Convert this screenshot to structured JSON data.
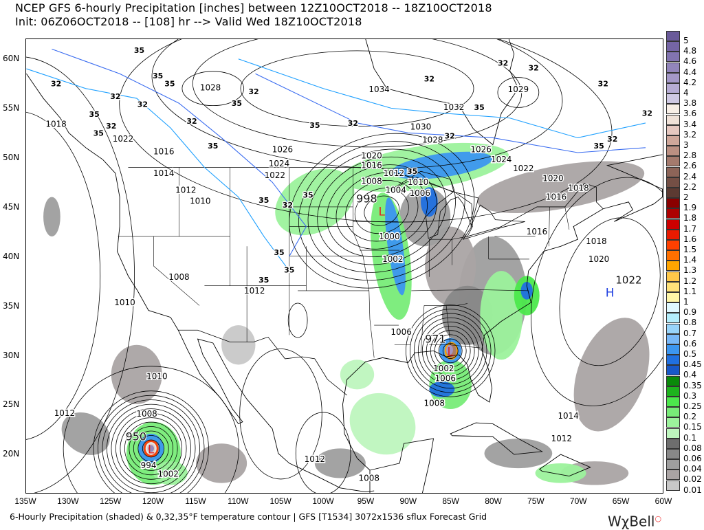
{
  "header": {
    "line1": "NCEP GFS 6-hourly Precipitation [inches] between 12Z10OCT2018 -- 18Z10OCT2018",
    "line2": "Init: 06Z06OCT2018 -- [108] hr --> Valid Wed 18Z10OCT2018"
  },
  "footer": {
    "caption": "6-Hourly Precipitation (shaded) & 0,32,35°F temperature contour | GFS [T1534] 3072x1536 sflux Forecast Grid",
    "logo": "WxBell"
  },
  "axes": {
    "lon_labels": [
      "135W",
      "130W",
      "125W",
      "120W",
      "115W",
      "110W",
      "105W",
      "100W",
      "95W",
      "90W",
      "85W",
      "80W",
      "75W",
      "70W",
      "65W",
      "60W"
    ],
    "lat_labels": [
      "60N",
      "55N",
      "50N",
      "45N",
      "40N",
      "35N",
      "30N",
      "25N",
      "20N"
    ],
    "lon_range": [
      -135,
      -60
    ],
    "lat_range": [
      16,
      62
    ]
  },
  "colorbar": {
    "units": "inches",
    "levels": [
      {
        "label": "5",
        "color": "#6a5a9a"
      },
      {
        "label": "4.8",
        "color": "#7565a5"
      },
      {
        "label": "4.6",
        "color": "#8274b0"
      },
      {
        "label": "4.4",
        "color": "#9285bb"
      },
      {
        "label": "4.2",
        "color": "#a498c8"
      },
      {
        "label": "4",
        "color": "#b6acd4"
      },
      {
        "label": "3.8",
        "color": "#cfc9e3"
      },
      {
        "label": "3.6",
        "color": "#f8efe6"
      },
      {
        "label": "3.4",
        "color": "#f0e2d8"
      },
      {
        "label": "3.2",
        "color": "#e6c8c0"
      },
      {
        "label": "3",
        "color": "#cfa79a"
      },
      {
        "label": "2.8",
        "color": "#bb9082"
      },
      {
        "label": "2.6",
        "color": "#a47a6d"
      },
      {
        "label": "2.4",
        "color": "#8c6458"
      },
      {
        "label": "2.2",
        "color": "#744f45"
      },
      {
        "label": "2",
        "color": "#5c3a32"
      },
      {
        "label": "1.9",
        "color": "#8a0000"
      },
      {
        "label": "1.8",
        "color": "#ad0000"
      },
      {
        "label": "1.7",
        "color": "#cc0000"
      },
      {
        "label": "1.6",
        "color": "#e81a00"
      },
      {
        "label": "1.5",
        "color": "#ff4000"
      },
      {
        "label": "1.4",
        "color": "#ff7000"
      },
      {
        "label": "1.3",
        "color": "#ffa500"
      },
      {
        "label": "1.2",
        "color": "#ffc84a"
      },
      {
        "label": "1.1",
        "color": "#ffe27a"
      },
      {
        "label": "1",
        "color": "#fff6a8"
      },
      {
        "label": "0.9",
        "color": "#e0f8ff"
      },
      {
        "label": "0.8",
        "color": "#b4eefc"
      },
      {
        "label": "0.7",
        "color": "#98d4fa"
      },
      {
        "label": "0.6",
        "color": "#78b8f8"
      },
      {
        "label": "0.5",
        "color": "#3c96f0"
      },
      {
        "label": "0.45",
        "color": "#2070e0"
      },
      {
        "label": "0.4",
        "color": "#1858c8"
      },
      {
        "label": "0.35",
        "color": "#0a8a0a"
      },
      {
        "label": "0.3",
        "color": "#1eb41e"
      },
      {
        "label": "0.25",
        "color": "#4ce84c"
      },
      {
        "label": "0.2",
        "color": "#78ec78"
      },
      {
        "label": "0.15",
        "color": "#9cf29c"
      },
      {
        "label": "0.1",
        "color": "#bef6be"
      },
      {
        "label": "0.08",
        "color": "#6e6e6e"
      },
      {
        "label": "0.06",
        "color": "#888888"
      },
      {
        "label": "0.04",
        "color": "#9e9e9e"
      },
      {
        "label": "0.02",
        "color": "#aaa4a4"
      },
      {
        "label": "0.01",
        "color": "#c8c8c8"
      }
    ]
  },
  "isobar_labels": [
    {
      "text": "1028",
      "lon": -113.3,
      "lat": 57.1
    },
    {
      "text": "1034",
      "lon": -93.4,
      "lat": 56.9
    },
    {
      "text": "1032",
      "lon": -84.6,
      "lat": 55.1
    },
    {
      "text": "1030",
      "lon": -88.5,
      "lat": 53.1
    },
    {
      "text": "1028",
      "lon": -87.1,
      "lat": 51.8
    },
    {
      "text": "1026",
      "lon": -104.8,
      "lat": 50.8
    },
    {
      "text": "1026",
      "lon": -81.4,
      "lat": 50.8
    },
    {
      "text": "1024",
      "lon": -105.2,
      "lat": 49.4
    },
    {
      "text": "1024",
      "lon": -79.0,
      "lat": 49.8
    },
    {
      "text": "1022",
      "lon": -76.4,
      "lat": 48.9
    },
    {
      "text": "1020",
      "lon": -72.9,
      "lat": 47.9
    },
    {
      "text": "1018",
      "lon": -69.9,
      "lat": 46.9
    },
    {
      "text": "1016",
      "lon": -70.5,
      "lat": 46.0
    },
    {
      "text": "1022",
      "lon": -105.7,
      "lat": 48.2
    },
    {
      "text": "1020",
      "lon": -94.3,
      "lat": 50.2
    },
    {
      "text": "1016",
      "lon": -94.3,
      "lat": 49.2
    },
    {
      "text": "1012",
      "lon": -94.3,
      "lat": 48.4
    },
    {
      "text": "1008",
      "lon": -94.3,
      "lat": 47.6
    },
    {
      "text": "1004",
      "lon": -93.9,
      "lat": 46.7
    },
    {
      "text": "1010",
      "lon": -89.6,
      "lat": 47.5
    },
    {
      "text": "1006",
      "lon": -88.6,
      "lat": 46.4
    },
    {
      "text": "1000",
      "lon": -92.2,
      "lat": 42.0
    },
    {
      "text": "1002",
      "lon": -91.8,
      "lat": 39.7
    },
    {
      "text": "1016",
      "lon": -74.8,
      "lat": 42.5
    },
    {
      "text": "1018",
      "lon": -67.8,
      "lat": 41.5
    },
    {
      "text": "1020",
      "lon": -67.5,
      "lat": 39.7
    },
    {
      "text": "1029",
      "lon": -77.0,
      "lat": 56.9
    },
    {
      "text": "1014",
      "lon": -118.8,
      "lat": 48.4
    },
    {
      "text": "1012",
      "lon": -116.2,
      "lat": 46.7
    },
    {
      "text": "1010",
      "lon": -114.5,
      "lat": 45.6
    },
    {
      "text": "1016",
      "lon": -118.8,
      "lat": 50.6
    },
    {
      "text": "1018",
      "lon": -131.5,
      "lat": 53.4
    },
    {
      "text": "1022",
      "lon": -123.6,
      "lat": 51.9
    },
    {
      "text": "1008",
      "lon": -117.0,
      "lat": 37.9
    },
    {
      "text": "1010",
      "lon": -123.4,
      "lat": 35.3
    },
    {
      "text": "1012",
      "lon": -108.1,
      "lat": 36.5
    },
    {
      "text": "1006",
      "lon": -90.8,
      "lat": 32.3
    },
    {
      "text": "1002",
      "lon": -85.8,
      "lat": 28.6
    },
    {
      "text": "1006",
      "lon": -85.6,
      "lat": 27.6
    },
    {
      "text": "1008",
      "lon": -86.9,
      "lat": 25.1
    },
    {
      "text": "1014",
      "lon": -71.1,
      "lat": 23.8
    },
    {
      "text": "1012",
      "lon": -71.9,
      "lat": 21.5
    },
    {
      "text": "1010",
      "lon": -119.6,
      "lat": 27.8
    },
    {
      "text": "1012",
      "lon": -130.5,
      "lat": 24.1
    },
    {
      "text": "1008",
      "lon": -120.8,
      "lat": 24.0
    },
    {
      "text": "994",
      "lon": -120.6,
      "lat": 18.8
    },
    {
      "text": "1002",
      "lon": -120.6,
      "lat": 17.9
    },
    {
      "text": "1012",
      "lon": -101.0,
      "lat": 19.4
    },
    {
      "text": "1008",
      "lon": -94.6,
      "lat": 17.5
    }
  ],
  "centers": [
    {
      "type": "L",
      "pressure": "998",
      "lon": -93.1,
      "lat": 44.6,
      "color": "#e02020"
    },
    {
      "type": "L",
      "pressure": "971",
      "lon": -85.0,
      "lat": 30.4,
      "color": "#e02020"
    },
    {
      "type": "L",
      "pressure": "950",
      "lon": -120.3,
      "lat": 20.5,
      "color": "#e02020"
    },
    {
      "type": "H",
      "pressure": "1022",
      "lon": -66.2,
      "lat": 36.4,
      "color": "#2040e0"
    }
  ],
  "temperature_labels": [
    {
      "text": "35",
      "lon": -121.7,
      "lat": 60.9
    },
    {
      "text": "35",
      "lon": -119.5,
      "lat": 58.3
    },
    {
      "text": "32",
      "lon": -131.5,
      "lat": 57.5
    },
    {
      "text": "32",
      "lon": -124.5,
      "lat": 56.2
    },
    {
      "text": "35",
      "lon": -118.3,
      "lat": 57.5
    },
    {
      "text": "32",
      "lon": -121.3,
      "lat": 55.4
    },
    {
      "text": "35",
      "lon": -127.0,
      "lat": 54.4
    },
    {
      "text": "32",
      "lon": -125.0,
      "lat": 53.2
    },
    {
      "text": "35",
      "lon": -126.5,
      "lat": 52.5
    },
    {
      "text": "32",
      "lon": -115.5,
      "lat": 53.7
    },
    {
      "text": "35",
      "lon": -113.0,
      "lat": 51.2
    },
    {
      "text": "32",
      "lon": -108.2,
      "lat": 56.7
    },
    {
      "text": "35",
      "lon": -110.2,
      "lat": 55.5
    },
    {
      "text": "32",
      "lon": -96.5,
      "lat": 53.5
    },
    {
      "text": "35",
      "lon": -101.0,
      "lat": 53.3
    },
    {
      "text": "35",
      "lon": -107.0,
      "lat": 45.7
    },
    {
      "text": "32",
      "lon": -104.2,
      "lat": 45.2
    },
    {
      "text": "35",
      "lon": -101.8,
      "lat": 46.2
    },
    {
      "text": "35",
      "lon": -105.2,
      "lat": 40.4
    },
    {
      "text": "35",
      "lon": -107.0,
      "lat": 37.6
    },
    {
      "text": "35",
      "lon": -104.0,
      "lat": 38.6
    },
    {
      "text": "32",
      "lon": -87.5,
      "lat": 58.0
    },
    {
      "text": "32",
      "lon": -78.8,
      "lat": 59.6
    },
    {
      "text": "32",
      "lon": -75.2,
      "lat": 59.1
    },
    {
      "text": "35",
      "lon": -81.6,
      "lat": 55.1
    },
    {
      "text": "35",
      "lon": -89.5,
      "lat": 48.6
    },
    {
      "text": "32",
      "lon": -86.0,
      "lat": 52.2
    },
    {
      "text": "32",
      "lon": -67.0,
      "lat": 57.5
    },
    {
      "text": "32",
      "lon": -61.8,
      "lat": 54.5
    },
    {
      "text": "35",
      "lon": -67.5,
      "lat": 51.2
    },
    {
      "text": "32",
      "lon": -65.9,
      "lat": 51.9
    }
  ]
}
